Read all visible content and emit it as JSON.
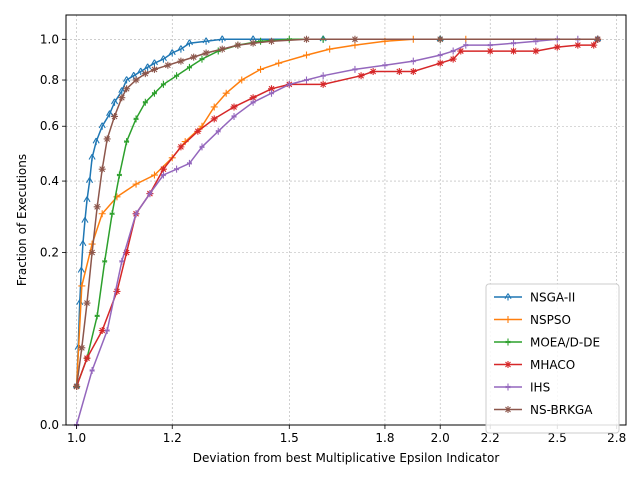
{
  "chart_data": {
    "type": "line",
    "title": "",
    "xlabel": "Deviation from best Multiplicative Epsilon Indicator",
    "ylabel": "Fraction of Executions",
    "xscale": "log",
    "yscale": "sqrt",
    "xlim": [
      0.98,
      2.85
    ],
    "ylim": [
      0,
      1.13
    ],
    "xticks": [
      1.0,
      1.2,
      1.5,
      1.8,
      2.0,
      2.2,
      2.5,
      2.8
    ],
    "xticklabels": [
      "1.0",
      "1.2",
      "1.5",
      "1.8",
      "2.0",
      "2.2",
      "2.5",
      "2.8"
    ],
    "yticks": [
      0.0,
      0.2,
      0.4,
      0.6,
      0.8,
      1.0
    ],
    "yticklabels": [
      "0.0",
      "0.2",
      "0.4",
      "0.6",
      "0.8",
      "1.0"
    ],
    "grid": true,
    "legend_position": "lower-right",
    "series": [
      {
        "name": "NSGA-II",
        "color": "#1f77b4",
        "marker": "triangle-star",
        "x": [
          1.0,
          1.003,
          1.006,
          1.009,
          1.012,
          1.016,
          1.02,
          1.025,
          1.03,
          1.038,
          1.05,
          1.065,
          1.075,
          1.09,
          1.1,
          1.115,
          1.13,
          1.145,
          1.16,
          1.18,
          1.2,
          1.22,
          1.24,
          1.28,
          1.32,
          1.4,
          1.6,
          2.0,
          2.7
        ],
        "y": [
          0.01,
          0.04,
          0.1,
          0.16,
          0.22,
          0.28,
          0.34,
          0.4,
          0.48,
          0.54,
          0.6,
          0.65,
          0.7,
          0.75,
          0.8,
          0.82,
          0.84,
          0.86,
          0.88,
          0.9,
          0.93,
          0.95,
          0.98,
          0.99,
          1.0,
          1.0,
          1.0,
          1.0,
          1.0
        ]
      },
      {
        "name": "NSPSO",
        "color": "#ff7f0e",
        "marker": "plus",
        "x": [
          1.0,
          1.01,
          1.03,
          1.05,
          1.08,
          1.12,
          1.16,
          1.2,
          1.23,
          1.27,
          1.3,
          1.33,
          1.37,
          1.42,
          1.47,
          1.55,
          1.62,
          1.7,
          1.8,
          1.9,
          2.1,
          2.7
        ],
        "y": [
          0.01,
          0.13,
          0.22,
          0.3,
          0.35,
          0.39,
          0.42,
          0.48,
          0.54,
          0.6,
          0.68,
          0.74,
          0.8,
          0.85,
          0.88,
          0.92,
          0.95,
          0.97,
          0.99,
          1.0,
          1.0,
          1.0
        ]
      },
      {
        "name": "MOEA/D-DE",
        "color": "#2ca02c",
        "marker": "star",
        "x": [
          1.0,
          1.02,
          1.04,
          1.055,
          1.07,
          1.085,
          1.1,
          1.12,
          1.14,
          1.16,
          1.18,
          1.21,
          1.24,
          1.27,
          1.31,
          1.36,
          1.42,
          1.5,
          1.6,
          2.0,
          2.7
        ],
        "y": [
          0.01,
          0.03,
          0.08,
          0.18,
          0.3,
          0.42,
          0.54,
          0.63,
          0.7,
          0.74,
          0.78,
          0.82,
          0.86,
          0.9,
          0.94,
          0.97,
          0.99,
          1.0,
          1.0,
          1.0,
          1.0
        ]
      },
      {
        "name": "MHACO",
        "color": "#d62728",
        "marker": "x-star",
        "x": [
          1.0,
          1.02,
          1.05,
          1.08,
          1.1,
          1.12,
          1.15,
          1.18,
          1.22,
          1.26,
          1.3,
          1.35,
          1.4,
          1.45,
          1.5,
          1.6,
          1.72,
          1.76,
          1.85,
          1.9,
          2.0,
          2.05,
          2.08,
          2.2,
          2.3,
          2.4,
          2.5,
          2.6,
          2.68,
          2.7
        ],
        "y": [
          0.01,
          0.03,
          0.06,
          0.12,
          0.2,
          0.3,
          0.36,
          0.44,
          0.52,
          0.58,
          0.63,
          0.68,
          0.72,
          0.76,
          0.78,
          0.78,
          0.82,
          0.84,
          0.84,
          0.84,
          0.88,
          0.9,
          0.94,
          0.94,
          0.94,
          0.94,
          0.96,
          0.97,
          0.97,
          1.0
        ]
      },
      {
        "name": "IHS",
        "color": "#9467bd",
        "marker": "star",
        "x": [
          1.0,
          1.03,
          1.06,
          1.09,
          1.12,
          1.15,
          1.18,
          1.21,
          1.24,
          1.27,
          1.31,
          1.35,
          1.4,
          1.45,
          1.5,
          1.55,
          1.6,
          1.7,
          1.8,
          1.9,
          2.0,
          2.05,
          2.1,
          2.2,
          2.3,
          2.4,
          2.5,
          2.6,
          2.7
        ],
        "y": [
          0.0,
          0.02,
          0.06,
          0.18,
          0.3,
          0.36,
          0.42,
          0.44,
          0.46,
          0.52,
          0.58,
          0.64,
          0.7,
          0.74,
          0.78,
          0.8,
          0.82,
          0.85,
          0.87,
          0.89,
          0.92,
          0.94,
          0.97,
          0.97,
          0.98,
          0.99,
          1.0,
          1.0,
          1.0
        ]
      },
      {
        "name": "NS-BRKGA",
        "color": "#8c564b",
        "marker": "x-star",
        "x": [
          1.0,
          1.01,
          1.02,
          1.03,
          1.04,
          1.05,
          1.06,
          1.075,
          1.09,
          1.1,
          1.12,
          1.14,
          1.16,
          1.19,
          1.22,
          1.25,
          1.28,
          1.32,
          1.36,
          1.4,
          1.45,
          1.55,
          1.7,
          2.0,
          2.7
        ],
        "y": [
          0.01,
          0.04,
          0.1,
          0.2,
          0.32,
          0.44,
          0.55,
          0.64,
          0.72,
          0.76,
          0.8,
          0.83,
          0.85,
          0.87,
          0.89,
          0.91,
          0.93,
          0.95,
          0.97,
          0.98,
          0.99,
          1.0,
          1.0,
          1.0,
          1.0
        ]
      }
    ]
  }
}
